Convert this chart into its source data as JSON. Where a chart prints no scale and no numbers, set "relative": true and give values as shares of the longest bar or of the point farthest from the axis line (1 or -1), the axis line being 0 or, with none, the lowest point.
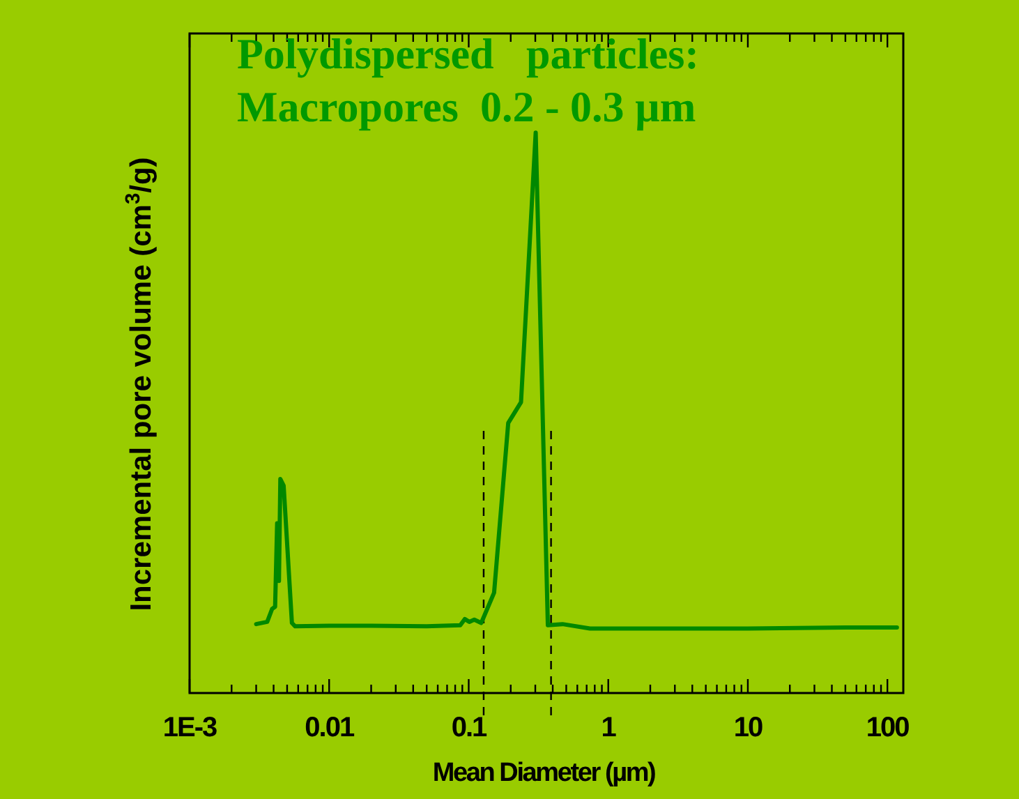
{
  "chart_data": {
    "type": "line",
    "relative": true,
    "title": "Polydispersed   particles:\nMacropores  0.2 - 0.3 µm",
    "xlabel": "Mean Diameter (µm)",
    "ylabel": "Incremental pore volume (cm$^{3}$/g)",
    "log": "x",
    "xlim": [
      0.001,
      130
    ],
    "xticks": [
      {
        "value": 0.001,
        "label": "1E-3"
      },
      0.01,
      0.1,
      1,
      10,
      100,
      {
        "value": 0.002,
        "label": null
      },
      {
        "value": 0.003,
        "label": null
      },
      {
        "value": 0.004,
        "label": null
      },
      {
        "value": 0.005,
        "label": null
      },
      {
        "value": 0.006,
        "label": null
      },
      {
        "value": 0.007,
        "label": null
      },
      {
        "value": 0.008,
        "label": null
      },
      {
        "value": 0.009,
        "label": null
      },
      {
        "value": 0.02,
        "label": null
      },
      {
        "value": 0.03,
        "label": null
      },
      {
        "value": 0.04,
        "label": null
      },
      {
        "value": 0.05,
        "label": null
      },
      {
        "value": 0.06,
        "label": null
      },
      {
        "value": 0.07,
        "label": null
      },
      {
        "value": 0.08,
        "label": null
      },
      {
        "value": 0.09,
        "label": null
      },
      {
        "value": 0.2,
        "label": null
      },
      {
        "value": 0.3,
        "label": null
      },
      {
        "value": 0.4,
        "label": null
      },
      {
        "value": 0.5,
        "label": null
      },
      {
        "value": 0.6,
        "label": null
      },
      {
        "value": 0.7,
        "label": null
      },
      {
        "value": 0.8,
        "label": null
      },
      {
        "value": 0.9,
        "label": null
      },
      {
        "value": 2,
        "label": null
      },
      {
        "value": 3,
        "label": null
      },
      {
        "value": 4,
        "label": null
      },
      {
        "value": 5,
        "label": null
      },
      {
        "value": 6,
        "label": null
      },
      {
        "value": 7,
        "label": null
      },
      {
        "value": 8,
        "label": null
      },
      {
        "value": 9,
        "label": null
      },
      {
        "value": 20,
        "label": null
      },
      {
        "value": 30,
        "label": null
      },
      {
        "value": 40,
        "label": null
      },
      {
        "value": 50,
        "label": null
      },
      {
        "value": 60,
        "label": null
      },
      {
        "value": 70,
        "label": null
      },
      {
        "value": 80,
        "label": null
      },
      {
        "value": 90,
        "label": null
      }
    ],
    "grid": false,
    "marker": "none",
    "line_style": "solid",
    "ref_lines": [
      {
        "axis": "x",
        "value": 0.128,
        "color": "#000000",
        "line_style": "dashed"
      },
      {
        "axis": "x",
        "value": 0.389,
        "color": "#000000",
        "line_style": "dashed"
      }
    ],
    "series": [
      {
        "color": "#008800",
        "x": [
          0.003,
          0.0036,
          0.0039,
          0.0041,
          0.00424,
          0.00437,
          0.00447,
          0.00472,
          0.00541,
          0.00571,
          0.01,
          0.02,
          0.05,
          0.087,
          0.0937,
          0.101,
          0.1096,
          0.123,
          0.152,
          0.192,
          0.237,
          0.302,
          0.369,
          0.47,
          0.74,
          2,
          10,
          50,
          117
        ],
        "values": [
          0.123,
          0.127,
          0.15,
          0.154,
          0.303,
          0.2,
          0.382,
          0.37,
          0.125,
          0.119,
          0.12,
          0.12,
          0.119,
          0.121,
          0.132,
          0.127,
          0.131,
          0.125,
          0.179,
          0.482,
          0.519,
          1.0,
          0.121,
          0.123,
          0.115,
          0.115,
          0.115,
          0.117,
          0.117
        ]
      }
    ]
  }
}
